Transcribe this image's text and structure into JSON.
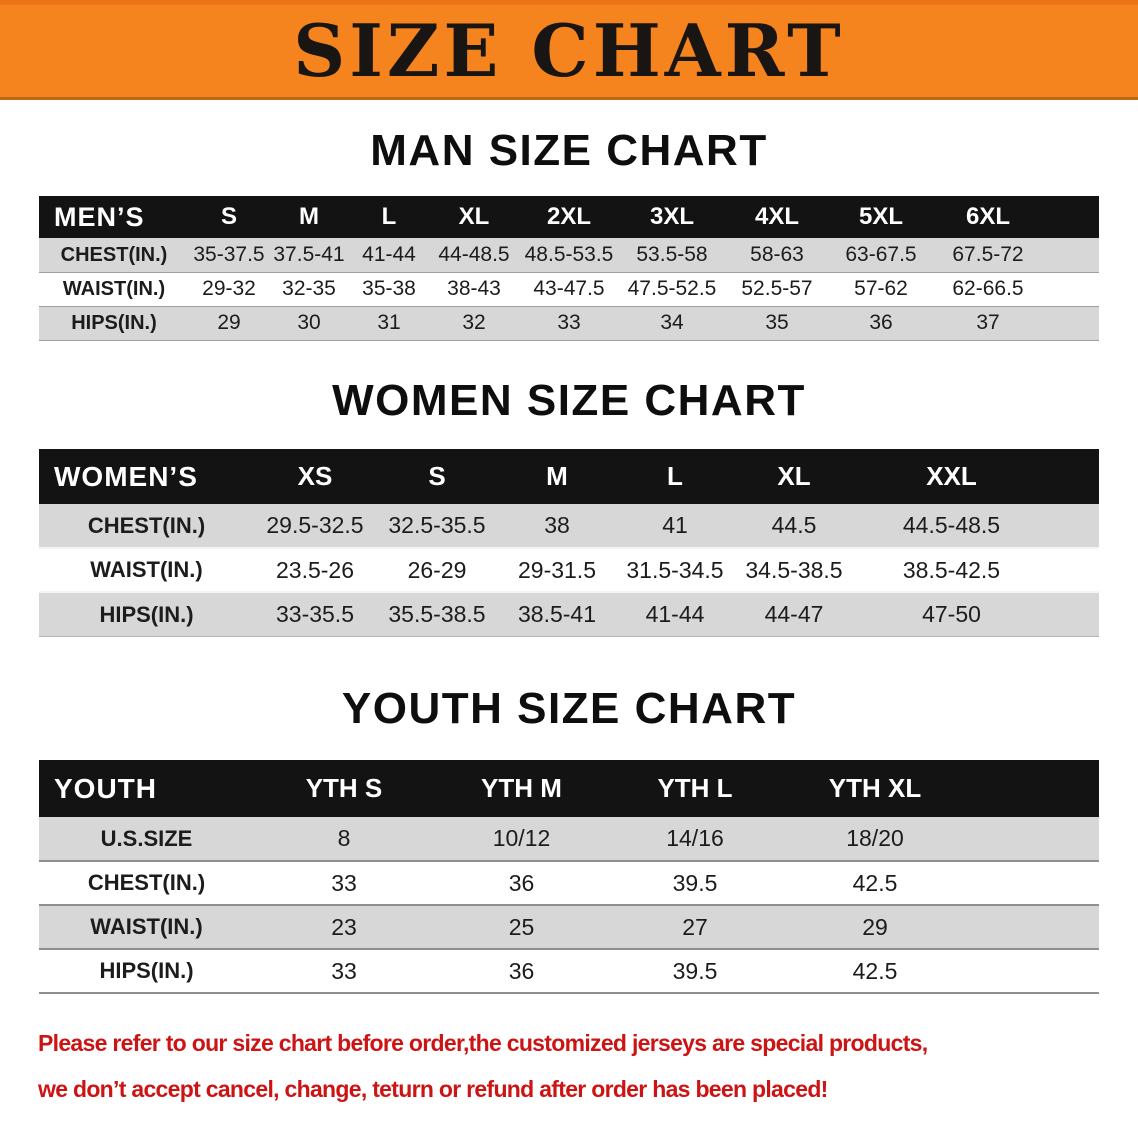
{
  "banner": {
    "title": "SIZE CHART",
    "bg_color": "#f5841f",
    "text_color": "#181512"
  },
  "colors": {
    "table_header_bg": "#131313",
    "row_gray": "#d7d7d7",
    "footer_red": "#cd1414"
  },
  "men": {
    "heading": "MAN SIZE CHART",
    "header_label": "MEN’S",
    "columns": [
      "S",
      "M",
      "L",
      "XL",
      "2XL",
      "3XL",
      "4XL",
      "5XL",
      "6XL"
    ],
    "rows": [
      {
        "label": "CHEST(IN.)",
        "values": [
          "35-37.5",
          "37.5-41",
          "41-44",
          "44-48.5",
          "48.5-53.5",
          "53.5-58",
          "58-63",
          "63-67.5",
          "67.5-72"
        ]
      },
      {
        "label": "WAIST(IN.)",
        "values": [
          "29-32",
          "32-35",
          "35-38",
          "38-43",
          "43-47.5",
          "47.5-52.5",
          "52.5-57",
          "57-62",
          "62-66.5"
        ]
      },
      {
        "label": "HIPS(IN.)",
        "values": [
          "29",
          "30",
          "31",
          "32",
          "33",
          "34",
          "35",
          "36",
          "37"
        ]
      }
    ]
  },
  "women": {
    "heading": "WOMEN SIZE CHART",
    "header_label": "WOMEN’S",
    "columns": [
      "XS",
      "S",
      "M",
      "L",
      "XL",
      "XXL"
    ],
    "rows": [
      {
        "label": "CHEST(IN.)",
        "values": [
          "29.5-32.5",
          "32.5-35.5",
          "38",
          "41",
          "44.5",
          "44.5-48.5"
        ]
      },
      {
        "label": "WAIST(IN.)",
        "values": [
          "23.5-26",
          "26-29",
          "29-31.5",
          "31.5-34.5",
          "34.5-38.5",
          "38.5-42.5"
        ]
      },
      {
        "label": "HIPS(IN.)",
        "values": [
          "33-35.5",
          "35.5-38.5",
          "38.5-41",
          "41-44",
          "44-47",
          "47-50"
        ]
      }
    ]
  },
  "youth": {
    "heading": "YOUTH SIZE CHART",
    "header_label": "YOUTH",
    "columns": [
      "YTH S",
      "YTH M",
      "YTH L",
      "YTH XL"
    ],
    "rows": [
      {
        "label": "U.S.SIZE",
        "values": [
          "8",
          "10/12",
          "14/16",
          "18/20"
        ]
      },
      {
        "label": "CHEST(IN.)",
        "values": [
          "33",
          "36",
          "39.5",
          "42.5"
        ]
      },
      {
        "label": "WAIST(IN.)",
        "values": [
          "23",
          "25",
          "27",
          "29"
        ]
      },
      {
        "label": "HIPS(IN.)",
        "values": [
          "33",
          "36",
          "39.5",
          "42.5"
        ]
      }
    ]
  },
  "footer": {
    "line1": "Please refer to our size chart before order,the customized jerseys are special products,",
    "line2": "we don’t accept cancel, change, teturn or refund after order has been placed!"
  }
}
